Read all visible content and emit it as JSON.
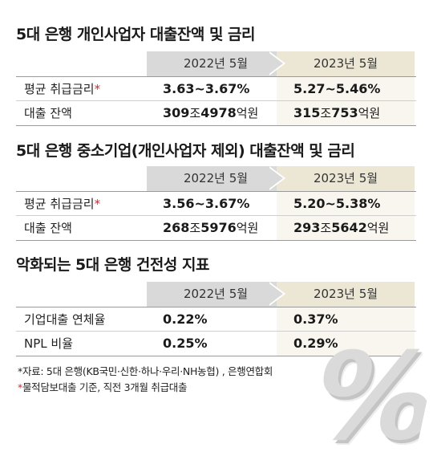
{
  "sections": [
    {
      "title": "5대 은행 개인사업자 대출잔액 및 금리",
      "col_left": "2022년 5월",
      "col_right": "2023년 5월",
      "rows": [
        {
          "label": "평균 취급금리",
          "star": "*",
          "v2022": "3.63~3.67%",
          "v2023": "5.27~5.46%"
        },
        {
          "label": "대출 잔액",
          "star": "",
          "v2022": {
            "a": "309",
            "u1": "조",
            "b": "4978",
            "u2": "억원"
          },
          "v2023": {
            "a": "315",
            "u1": "조",
            "b": "753",
            "u2": "억원"
          }
        }
      ]
    },
    {
      "title": "5대 은행 중소기업(개인사업자 제외) 대출잔액 및 금리",
      "col_left": "2022년 5월",
      "col_right": "2023년 5월",
      "rows": [
        {
          "label": "평균 취급금리",
          "star": "*",
          "v2022": "3.56~3.67%",
          "v2023": "5.20~5.38%"
        },
        {
          "label": "대출 잔액",
          "star": "",
          "v2022": {
            "a": "268",
            "u1": "조",
            "b": "5976",
            "u2": "억원"
          },
          "v2023": {
            "a": "293",
            "u1": "조",
            "b": "5642",
            "u2": "억원"
          }
        }
      ]
    },
    {
      "title": "악화되는 5대 은행 건전성 지표",
      "col_left": "2022년 5월",
      "col_right": "2023년 5월",
      "rows": [
        {
          "label": "기업대출 연체율",
          "star": "",
          "v2022": "0.22%",
          "v2023": "0.37%"
        },
        {
          "label": "NPL 비율",
          "star": "",
          "v2022": "0.25%",
          "v2023": "0.29%"
        }
      ]
    }
  ],
  "notes": {
    "source": "*자료: 5대 은행(KB국민·신한·하나·우리·NH농협) , 은행연합회",
    "footnote_star": "*",
    "footnote_text": "물적담보대출 기준, 직전 3개월 취급대출"
  },
  "decor": {
    "percent_symbol": "%"
  },
  "colors": {
    "accent_red": "#d6262b",
    "header_2022": "#d9d9d9",
    "header_2023": "#ece7d4"
  }
}
